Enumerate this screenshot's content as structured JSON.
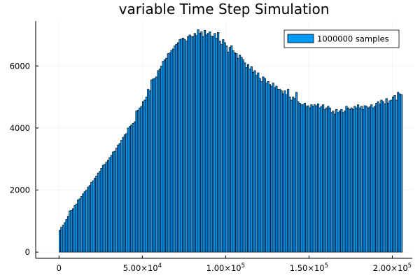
{
  "chart_data": {
    "type": "bar",
    "title": "variable Time Step Simulation",
    "xlabel": "",
    "ylabel": "",
    "xlim": [
      -14000,
      212000
    ],
    "ylim": [
      -200,
      7450
    ],
    "bin_width": 1000,
    "x_start": 0,
    "x_ticks": [
      0,
      50000,
      100000,
      150000,
      200000
    ],
    "x_tick_labels": [
      {
        "id": "0",
        "base": "0",
        "exp": ""
      },
      {
        "id": "50000",
        "base": "5.00×10",
        "exp": "4"
      },
      {
        "id": "100000",
        "base": "1.00×10",
        "exp": "5"
      },
      {
        "id": "150000",
        "base": "1.50×10",
        "exp": "5"
      },
      {
        "id": "200000",
        "base": "2.00×10",
        "exp": "5"
      }
    ],
    "y_ticks": [
      0,
      2000,
      4000,
      6000
    ],
    "y_tick_labels": [
      "0",
      "2000",
      "4000",
      "6000"
    ],
    "grid": true,
    "legend_position": "top-right",
    "bar_color": "#009af9",
    "series": [
      {
        "name": "1000000 samples",
        "values": [
          700,
          800,
          870,
          950,
          1050,
          1150,
          1330,
          1350,
          1400,
          1500,
          1550,
          1680,
          1720,
          1800,
          1880,
          1950,
          2000,
          2100,
          2150,
          2250,
          2300,
          2380,
          2450,
          2550,
          2600,
          2700,
          2800,
          2830,
          2900,
          2960,
          3050,
          3120,
          3230,
          3250,
          3350,
          3450,
          3500,
          3600,
          3700,
          3780,
          3820,
          4000,
          4050,
          4100,
          4150,
          4200,
          4550,
          4580,
          4650,
          4700,
          4850,
          4900,
          5000,
          5250,
          5200,
          5550,
          5580,
          5600,
          5650,
          5850,
          5900,
          6000,
          6150,
          6200,
          6250,
          6400,
          6420,
          6500,
          6550,
          6650,
          6700,
          6750,
          6850,
          6870,
          6900,
          6850,
          6800,
          6950,
          7000,
          6950,
          6950,
          7050,
          6980,
          7170,
          7050,
          7100,
          6950,
          7150,
          7000,
          7050,
          7100,
          6960,
          6950,
          7050,
          6900,
          7080,
          6800,
          6700,
          6850,
          6750,
          6650,
          6450,
          6600,
          6650,
          6500,
          6420,
          6400,
          6250,
          6350,
          6280,
          6200,
          6100,
          5950,
          6050,
          5900,
          5980,
          5800,
          5850,
          5700,
          5780,
          5600,
          5500,
          5650,
          5600,
          5450,
          5500,
          5400,
          5350,
          5450,
          5300,
          5350,
          5250,
          5250,
          5200,
          5100,
          5200,
          5080,
          5250,
          5000,
          4900,
          5000,
          4950,
          5150,
          4850,
          4800,
          4750,
          4750,
          4800,
          4700,
          4720,
          4650,
          4750,
          4700,
          4750,
          4720,
          4780,
          4650,
          4700,
          4750,
          4600,
          4650,
          4700,
          4650,
          4500,
          4550,
          4450,
          4600,
          4500,
          4550,
          4600,
          4500,
          4550,
          4700,
          4650,
          4600,
          4650,
          4600,
          4700,
          4650,
          4750,
          4650,
          4700,
          4600,
          4720,
          4700,
          4650,
          4680,
          4750,
          4650,
          4700,
          4800,
          4850,
          4780,
          4900,
          4850,
          4780,
          4950,
          4800,
          4880,
          4900,
          5000,
          5050,
          4900,
          5150,
          5100,
          5080
        ]
      }
    ]
  }
}
